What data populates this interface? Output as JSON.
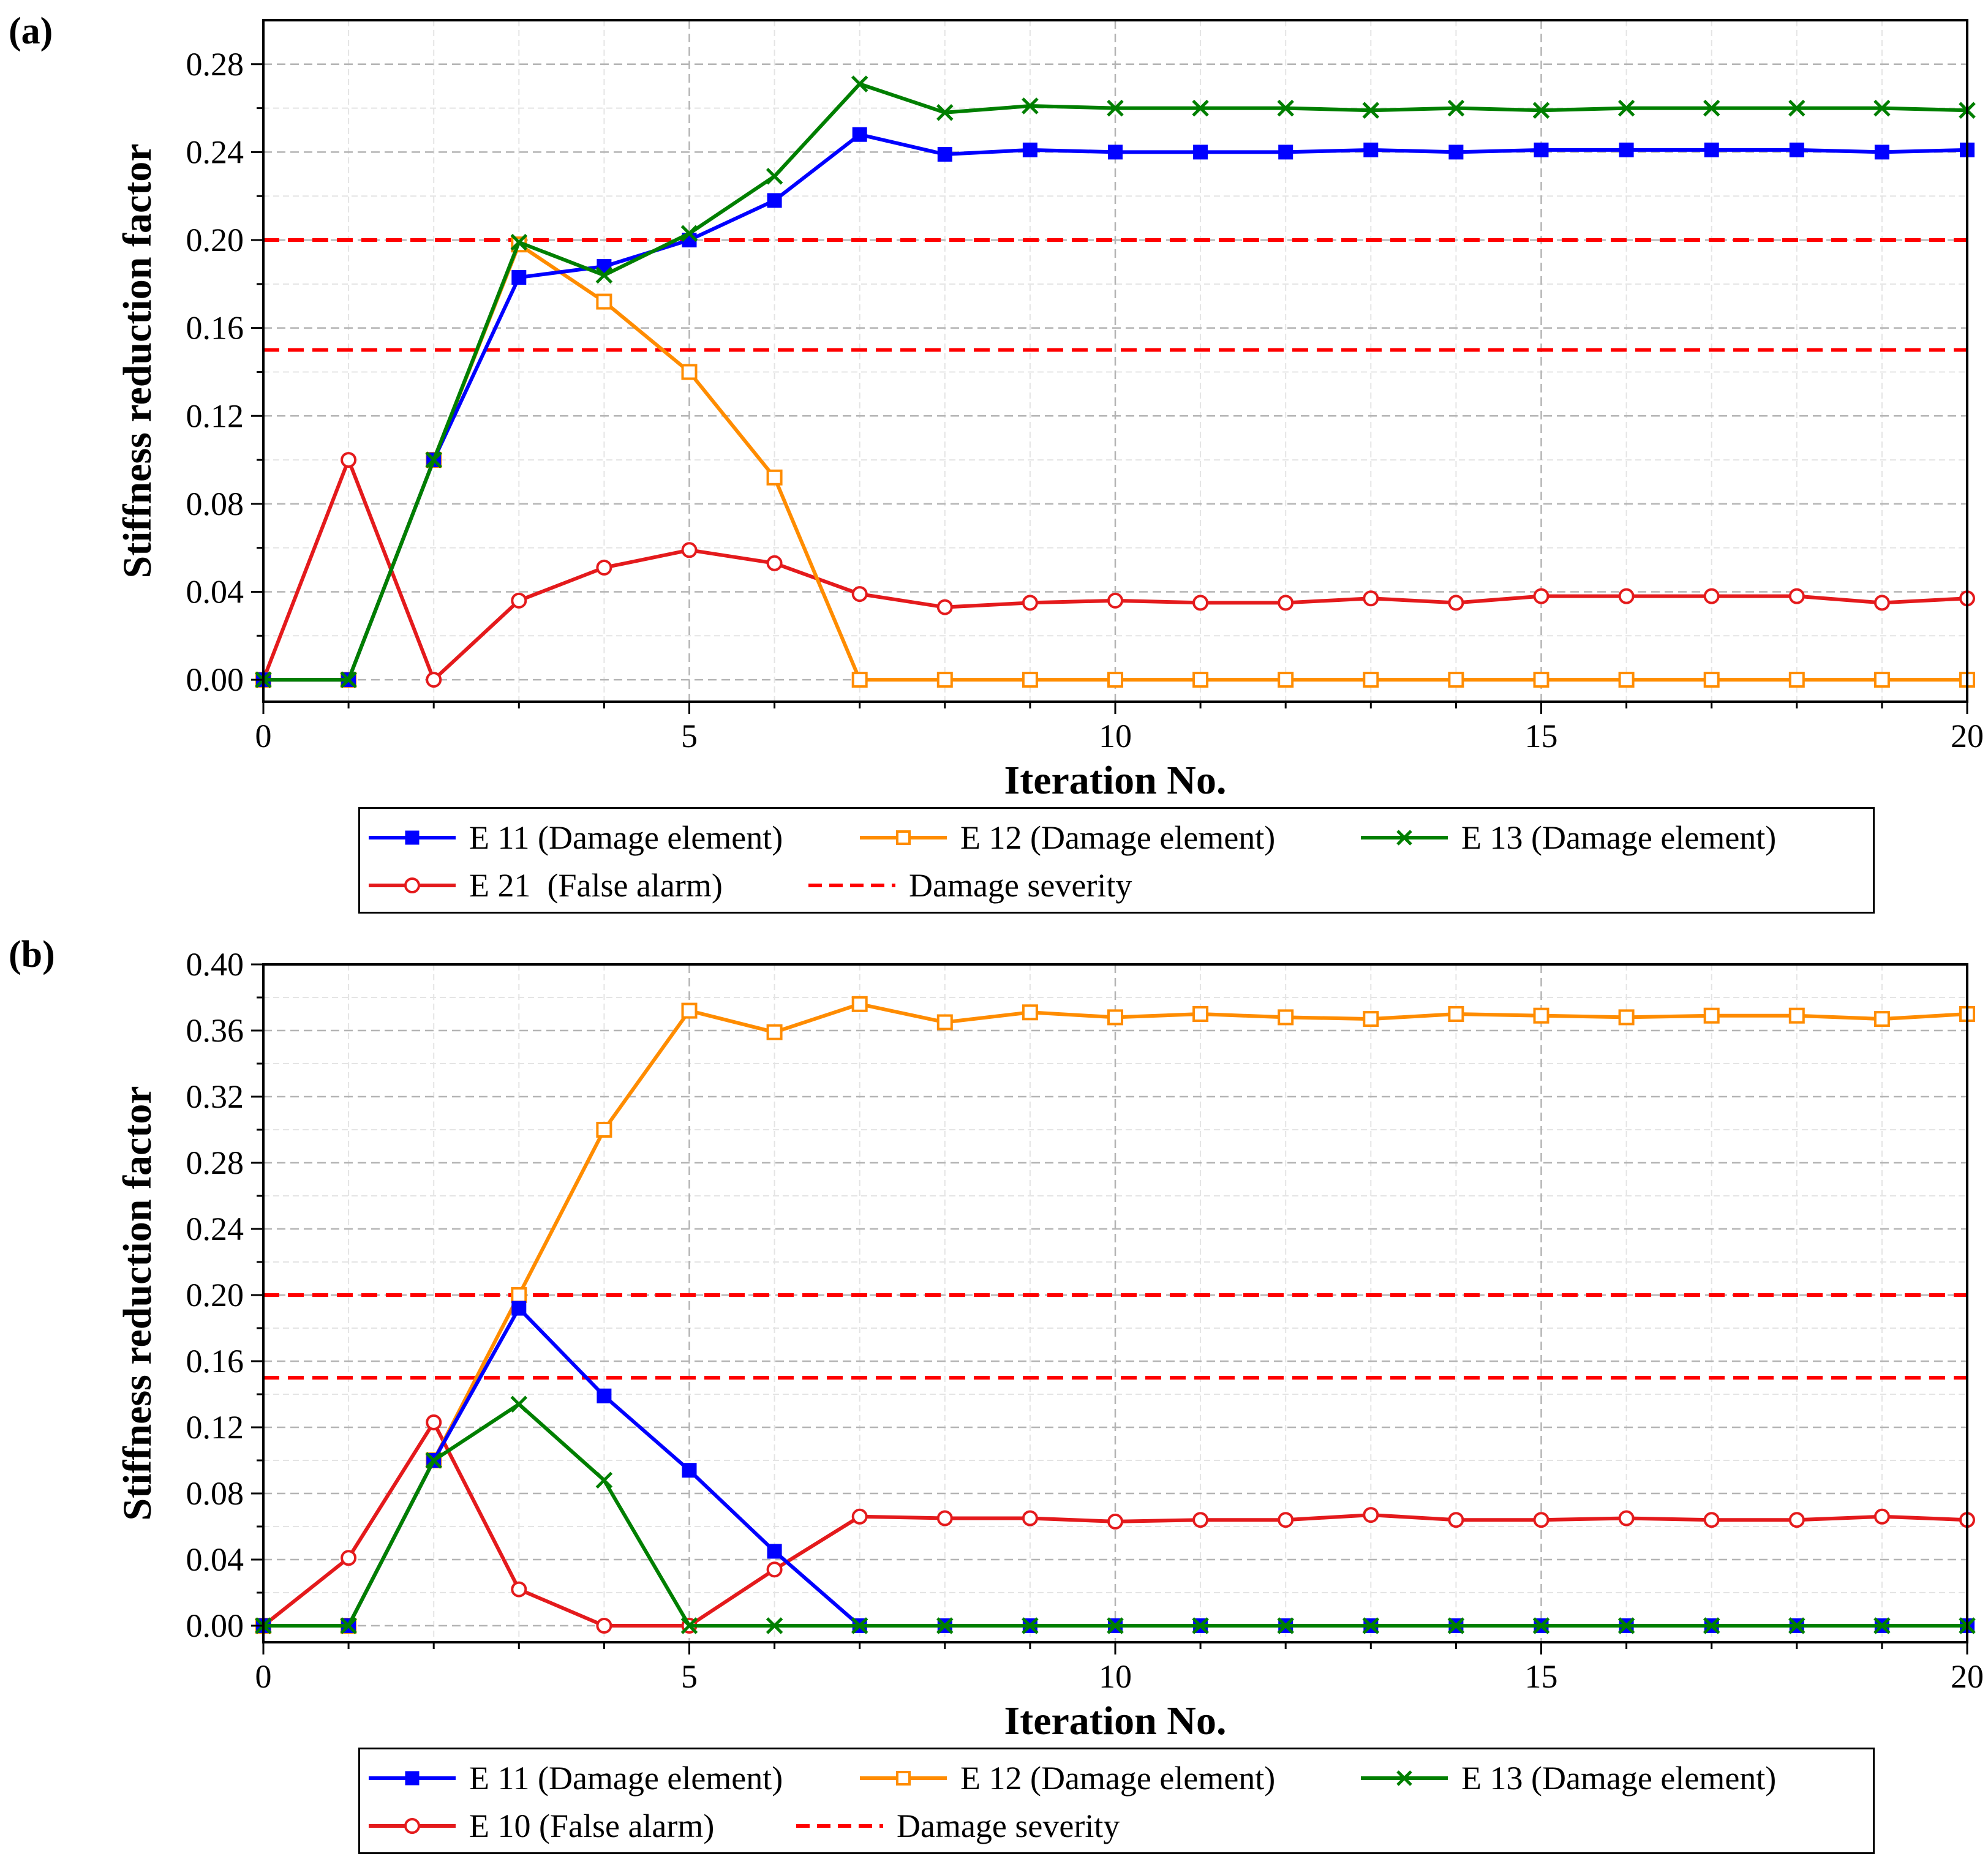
{
  "panels": [
    {
      "tag": "(a)",
      "legend": [
        [
          "E 11 (Damage element)",
          "E 12 (Damage element)",
          "E 13 (Damage element)"
        ],
        [
          "E 21  (False alarm)",
          "Damage severity"
        ]
      ]
    },
    {
      "tag": "(b)",
      "legend": [
        [
          "E 11 (Damage element)",
          "E 12 (Damage element)",
          "E 13 (Damage element)"
        ],
        [
          "E 10 (False alarm)",
          "Damage severity"
        ]
      ]
    }
  ],
  "colors": {
    "blue": "#0000ff",
    "orange": "#ff8c00",
    "green": "#007f00",
    "red": "#e41a1c",
    "dashed": "#ff0000"
  },
  "chart_data": [
    {
      "type": "line",
      "title": "(a)",
      "xlabel": "Iteration No.",
      "ylabel": "Stiffness reduction factor",
      "xlim": [
        0,
        20
      ],
      "ylim": [
        -0.01,
        0.3
      ],
      "xticks": [
        0,
        5,
        10,
        15,
        20
      ],
      "yticks": [
        0.0,
        0.04,
        0.08,
        0.12,
        0.16,
        0.2,
        0.24,
        0.28
      ],
      "ytick_labels": [
        "0.00",
        "0.04",
        "0.08",
        "0.12",
        "0.16",
        "0.20",
        "0.24",
        "0.28"
      ],
      "grid": true,
      "x": [
        0,
        1,
        2,
        3,
        4,
        5,
        6,
        7,
        8,
        9,
        10,
        11,
        12,
        13,
        14,
        15,
        16,
        17,
        18,
        19,
        20
      ],
      "series": [
        {
          "name": "E 11 (Damage element)",
          "color": "blue",
          "marker": "filled-square",
          "values": [
            0,
            0,
            0.1,
            0.183,
            0.188,
            0.2,
            0.218,
            0.248,
            0.239,
            0.241,
            0.24,
            0.24,
            0.24,
            0.241,
            0.24,
            0.241,
            0.241,
            0.241,
            0.241,
            0.24,
            0.241
          ]
        },
        {
          "name": "E 12 (Damage element)",
          "color": "orange",
          "marker": "open-square",
          "values": [
            0,
            0,
            0.1,
            0.198,
            0.172,
            0.14,
            0.092,
            0,
            0,
            0,
            0,
            0,
            0,
            0,
            0,
            0,
            0,
            0,
            0,
            0,
            0
          ]
        },
        {
          "name": "E 13 (Damage element)",
          "color": "green",
          "marker": "x",
          "values": [
            0,
            0,
            0.1,
            0.199,
            0.184,
            0.203,
            0.229,
            0.271,
            0.258,
            0.261,
            0.26,
            0.26,
            0.26,
            0.259,
            0.26,
            0.259,
            0.26,
            0.26,
            0.26,
            0.26,
            0.259
          ]
        },
        {
          "name": "E 21  (False alarm)",
          "color": "red",
          "marker": "open-circle",
          "values": [
            0,
            0.1,
            0,
            0.036,
            0.051,
            0.059,
            0.053,
            0.039,
            0.033,
            0.035,
            0.036,
            0.035,
            0.035,
            0.037,
            0.035,
            0.038,
            0.038,
            0.038,
            0.038,
            0.035,
            0.037
          ]
        }
      ],
      "hlines": [
        {
          "name": "Damage severity",
          "y": 0.2,
          "color": "dashed"
        },
        {
          "name": "Damage severity",
          "y": 0.15,
          "color": "dashed"
        }
      ]
    },
    {
      "type": "line",
      "title": "(b)",
      "xlabel": "Iteration No.",
      "ylabel": "Stiffness reduction factor",
      "xlim": [
        0,
        20
      ],
      "ylim": [
        -0.01,
        0.4
      ],
      "xticks": [
        0,
        5,
        10,
        15,
        20
      ],
      "yticks": [
        0.0,
        0.04,
        0.08,
        0.12,
        0.16,
        0.2,
        0.24,
        0.28,
        0.32,
        0.36,
        0.4
      ],
      "ytick_labels": [
        "0.00",
        "0.04",
        "0.08",
        "0.12",
        "0.16",
        "0.20",
        "0.24",
        "0.28",
        "0.32",
        "0.36",
        "0.40"
      ],
      "grid": true,
      "x": [
        0,
        1,
        2,
        3,
        4,
        5,
        6,
        7,
        8,
        9,
        10,
        11,
        12,
        13,
        14,
        15,
        16,
        17,
        18,
        19,
        20
      ],
      "series": [
        {
          "name": "E 11 (Damage element)",
          "color": "blue",
          "marker": "filled-square",
          "values": [
            0,
            0,
            0.1,
            0.192,
            0.139,
            0.094,
            0.045,
            0,
            0,
            0,
            0,
            0,
            0,
            0,
            0,
            0,
            0,
            0,
            0,
            0,
            0
          ]
        },
        {
          "name": "E 12 (Damage element)",
          "color": "orange",
          "marker": "open-square",
          "values": [
            0,
            0,
            0.1,
            0.2,
            0.3,
            0.372,
            0.359,
            0.376,
            0.365,
            0.371,
            0.368,
            0.37,
            0.368,
            0.367,
            0.37,
            0.369,
            0.368,
            0.369,
            0.369,
            0.367,
            0.37
          ]
        },
        {
          "name": "E 13 (Damage element)",
          "color": "green",
          "marker": "x",
          "values": [
            0,
            0,
            0.1,
            0.134,
            0.088,
            0,
            0,
            0,
            0,
            0,
            0,
            0,
            0,
            0,
            0,
            0,
            0,
            0,
            0,
            0,
            0
          ]
        },
        {
          "name": "E 10 (False alarm)",
          "color": "red",
          "marker": "open-circle",
          "values": [
            0,
            0.041,
            0.123,
            0.022,
            0,
            0,
            0.034,
            0.066,
            0.065,
            0.065,
            0.063,
            0.064,
            0.064,
            0.067,
            0.064,
            0.064,
            0.065,
            0.064,
            0.064,
            0.066,
            0.064
          ]
        }
      ],
      "hlines": [
        {
          "name": "Damage severity",
          "y": 0.2,
          "color": "dashed"
        },
        {
          "name": "Damage severity",
          "y": 0.15,
          "color": "dashed"
        }
      ]
    }
  ]
}
